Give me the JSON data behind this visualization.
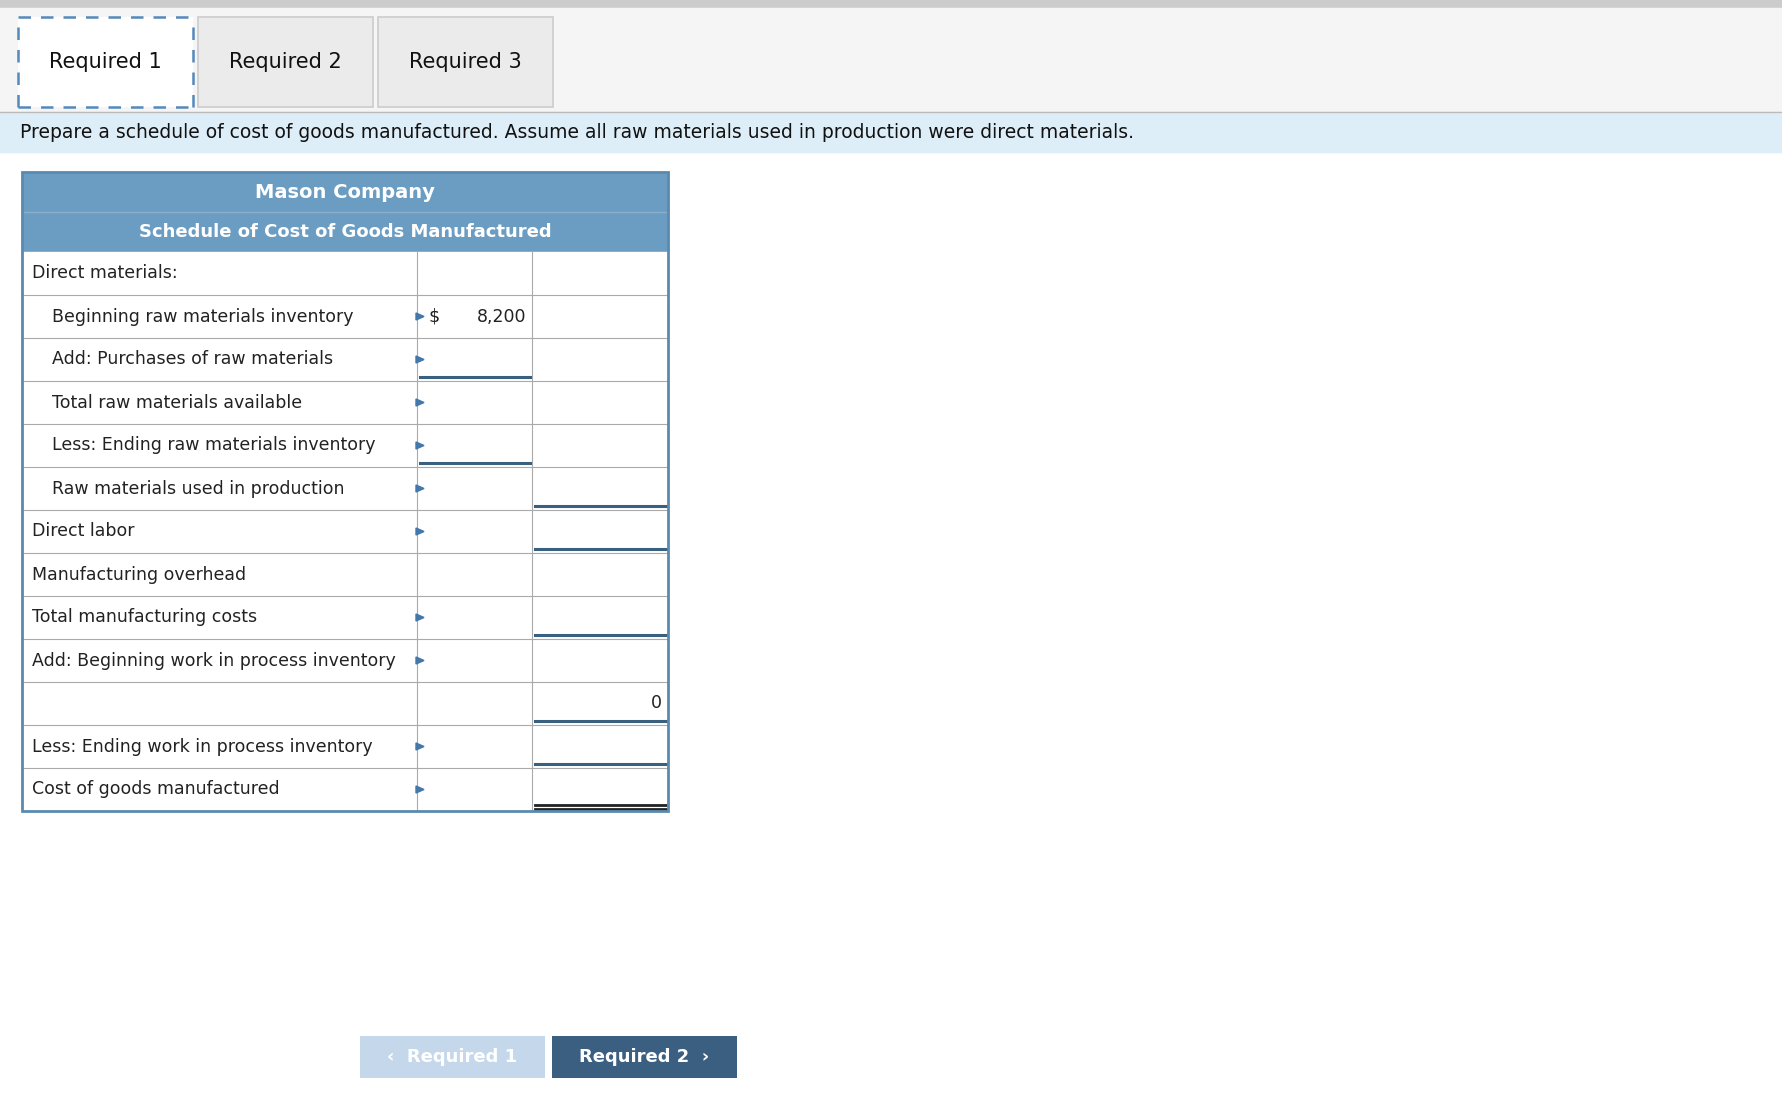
{
  "tab_labels": [
    "Required 1",
    "Required 2",
    "Required 3"
  ],
  "instruction_text": "Prepare a schedule of cost of goods manufactured. Assume all raw materials used in production were direct materials.",
  "table_title1": "Mason Company",
  "table_title2": "Schedule of Cost of Goods Manufactured",
  "rows": [
    {
      "label": "Direct materials:",
      "indent": 0,
      "col1": "",
      "col2": "",
      "arrow": false,
      "col1_underline": false,
      "col2_underline": false,
      "col2_double": false
    },
    {
      "label": "Beginning raw materials inventory",
      "indent": 1,
      "col1_dollar": true,
      "col1_val": "8,200",
      "col2": "",
      "arrow": true,
      "col1_underline": false,
      "col2_underline": false,
      "col2_double": false
    },
    {
      "label": "Add: Purchases of raw materials",
      "indent": 1,
      "col1_dollar": false,
      "col1_val": "",
      "col2": "",
      "arrow": true,
      "col1_underline": true,
      "col2_underline": false,
      "col2_double": false
    },
    {
      "label": "Total raw materials available",
      "indent": 1,
      "col1_dollar": false,
      "col1_val": "",
      "col2": "",
      "arrow": true,
      "col1_underline": false,
      "col2_underline": false,
      "col2_double": false
    },
    {
      "label": "Less: Ending raw materials inventory",
      "indent": 1,
      "col1_dollar": false,
      "col1_val": "",
      "col2": "",
      "arrow": true,
      "col1_underline": true,
      "col2_underline": false,
      "col2_double": false
    },
    {
      "label": "Raw materials used in production",
      "indent": 1,
      "col1_dollar": false,
      "col1_val": "",
      "col2": "",
      "arrow": true,
      "col1_underline": false,
      "col2_underline": true,
      "col2_double": false
    },
    {
      "label": "Direct labor",
      "indent": 0,
      "col1_dollar": false,
      "col1_val": "",
      "col2": "",
      "arrow": true,
      "col1_underline": false,
      "col2_underline": true,
      "col2_double": false
    },
    {
      "label": "Manufacturing overhead",
      "indent": 0,
      "col1_dollar": false,
      "col1_val": "",
      "col2": "",
      "arrow": false,
      "col1_underline": false,
      "col2_underline": false,
      "col2_double": false
    },
    {
      "label": "Total manufacturing costs",
      "indent": 0,
      "col1_dollar": false,
      "col1_val": "",
      "col2": "",
      "arrow": true,
      "col1_underline": false,
      "col2_underline": true,
      "col2_double": false
    },
    {
      "label": "Add: Beginning work in process inventory",
      "indent": 0,
      "col1_dollar": false,
      "col1_val": "",
      "col2": "",
      "arrow": true,
      "col1_underline": false,
      "col2_underline": false,
      "col2_double": false
    },
    {
      "label": "",
      "indent": 0,
      "col1_dollar": false,
      "col1_val": "",
      "col2": "0",
      "arrow": false,
      "col1_underline": false,
      "col2_underline": true,
      "col2_double": false
    },
    {
      "label": "Less: Ending work in process inventory",
      "indent": 0,
      "col1_dollar": false,
      "col1_val": "",
      "col2": "",
      "arrow": true,
      "col1_underline": false,
      "col2_underline": true,
      "col2_double": false
    },
    {
      "label": "Cost of goods manufactured",
      "indent": 0,
      "col1_dollar": false,
      "col1_val": "",
      "col2": "",
      "arrow": true,
      "col1_underline": false,
      "col2_underline": false,
      "col2_double": true
    }
  ],
  "colors": {
    "page_bg": "#ffffff",
    "top_strip": "#f0f0f0",
    "tab1_bg": "#ffffff",
    "tab2_bg": "#ebebeb",
    "tab_dashed_color": "#5588bb",
    "tab_solid_color": "#bbbbbb",
    "instr_bg": "#ddeef8",
    "table_hdr_bg": "#6b9dc2",
    "table_hdr_text": "#ffffff",
    "table_bg": "#ffffff",
    "table_outer_border": "#5a8ab0",
    "row_border": "#aaaaaa",
    "col_sep": "#888888",
    "arrow_color": "#4477aa",
    "text_color": "#222222",
    "btn1_bg": "#c5d8eb",
    "btn1_text": "#ffffff",
    "btn2_bg": "#3a5f80",
    "btn2_text": "#ffffff",
    "underline_color": "#3a6080",
    "double_underline_color": "#222222"
  },
  "figsize": [
    17.82,
    11.02
  ],
  "dpi": 100
}
